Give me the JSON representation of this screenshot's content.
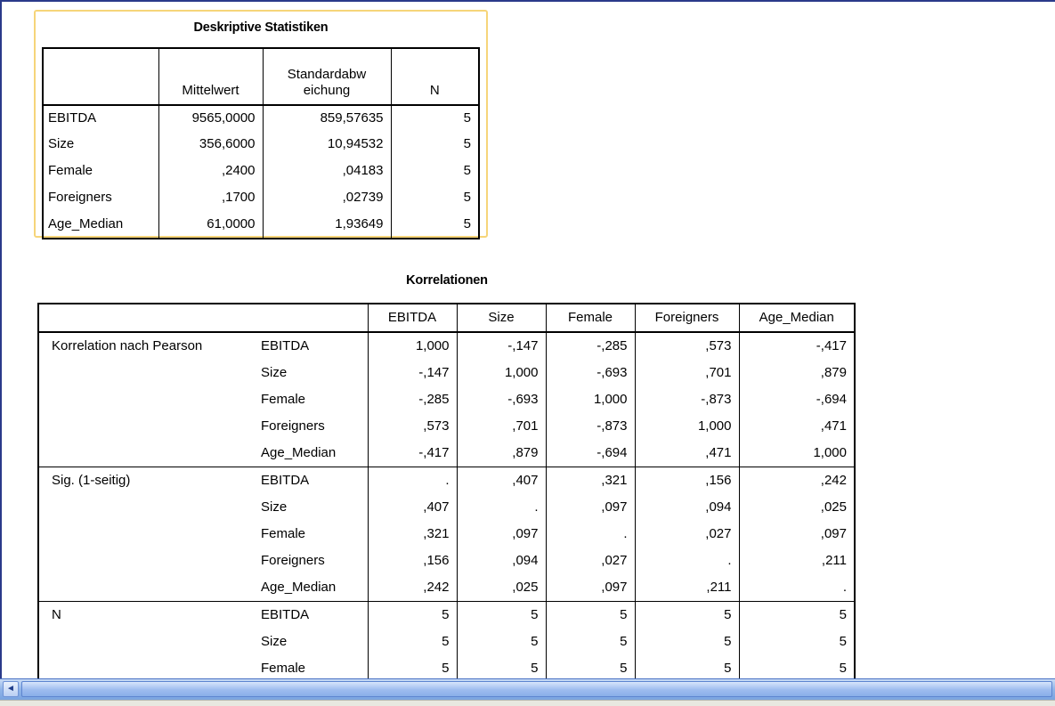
{
  "descriptive": {
    "title": "Deskriptive Statistiken",
    "headers": [
      "",
      "Mittelwert",
      "Standardabw\neichung",
      "N"
    ],
    "rows": [
      [
        "EBITDA",
        "9565,0000",
        "859,57635",
        "5"
      ],
      [
        "Size",
        "356,6000",
        "10,94532",
        "5"
      ],
      [
        "Female",
        ",2400",
        ",04183",
        "5"
      ],
      [
        "Foreigners",
        ",1700",
        ",02739",
        "5"
      ],
      [
        "Age_Median",
        "61,0000",
        "1,93649",
        "5"
      ]
    ]
  },
  "correlations": {
    "title": "Korrelationen",
    "headers": [
      "",
      "",
      "EBITDA",
      "Size",
      "Female",
      "Foreigners",
      "Age_Median"
    ],
    "rows": [
      [
        "Korrelation nach Pearson",
        "EBITDA",
        "1,000",
        "-,147",
        "-,285",
        ",573",
        "-,417"
      ],
      [
        "",
        "Size",
        "-,147",
        "1,000",
        "-,693",
        ",701",
        ",879"
      ],
      [
        "",
        "Female",
        "-,285",
        "-,693",
        "1,000",
        "-,873",
        "-,694"
      ],
      [
        "",
        "Foreigners",
        ",573",
        ",701",
        "-,873",
        "1,000",
        ",471"
      ],
      [
        "",
        "Age_Median",
        "-,417",
        ",879",
        "-,694",
        ",471",
        "1,000"
      ],
      [
        "Sig. (1-seitig)",
        "EBITDA",
        ".",
        ",407",
        ",321",
        ",156",
        ",242"
      ],
      [
        "",
        "Size",
        ",407",
        ".",
        ",097",
        ",094",
        ",025"
      ],
      [
        "",
        "Female",
        ",321",
        ",097",
        ".",
        ",027",
        ",097"
      ],
      [
        "",
        "Foreigners",
        ",156",
        ",094",
        ",027",
        ".",
        ",211"
      ],
      [
        "",
        "Age_Median",
        ",242",
        ",025",
        ",097",
        ",211",
        "."
      ],
      [
        "N",
        "EBITDA",
        "5",
        "5",
        "5",
        "5",
        "5"
      ],
      [
        "",
        "Size",
        "5",
        "5",
        "5",
        "5",
        "5"
      ],
      [
        "",
        "Female",
        "5",
        "5",
        "5",
        "5",
        "5"
      ]
    ]
  },
  "scrollbar": {
    "left_arrow_icon": "scroll-left-arrow-icon",
    "left_arrow_glyph": "◄"
  },
  "colors": {
    "frame_highlight": "#f6d57a",
    "window_border": "#2a3a8a",
    "scrollbar": "#8fb3e8"
  }
}
